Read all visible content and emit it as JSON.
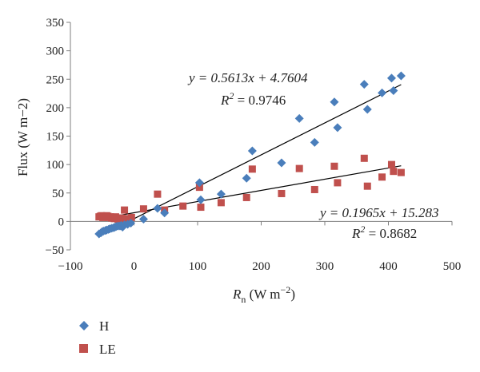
{
  "chart_data": {
    "type": "scatter",
    "xlabel": {
      "main": "R",
      "sub": "n",
      "unit": " (W m",
      "exp": "−2",
      "close": ")"
    },
    "ylabel": "Flux (W m−2)",
    "xlim": [
      -100,
      500
    ],
    "ylim": [
      -50,
      350
    ],
    "xticks": [
      -100,
      0,
      100,
      200,
      300,
      400,
      500
    ],
    "yticks": [
      -50,
      0,
      50,
      100,
      150,
      200,
      250,
      300,
      350
    ],
    "xtick_labels": [
      "−100",
      "0",
      "100",
      "200",
      "300",
      "400",
      "500"
    ],
    "ytick_labels": [
      "−50",
      "0",
      "50",
      "100",
      "150",
      "200",
      "250",
      "300",
      "350"
    ],
    "grid": false,
    "legend_position": "bottom-left",
    "series": [
      {
        "name": "H",
        "marker": "diamond",
        "color": "#4a7ebb",
        "points": [
          [
            -55,
            -22
          ],
          [
            -52,
            -20
          ],
          [
            -50,
            -18
          ],
          [
            -48,
            -17
          ],
          [
            -45,
            -16
          ],
          [
            -43,
            -15
          ],
          [
            -40,
            -14
          ],
          [
            -38,
            -13
          ],
          [
            -35,
            -12
          ],
          [
            -32,
            -11
          ],
          [
            -30,
            -10
          ],
          [
            -28,
            -9
          ],
          [
            -25,
            -8
          ],
          [
            -22,
            -8
          ],
          [
            -20,
            -7
          ],
          [
            -18,
            -10
          ],
          [
            -15,
            -6
          ],
          [
            -10,
            -5
          ],
          [
            -5,
            -3
          ],
          [
            15,
            4
          ],
          [
            37,
            23
          ],
          [
            48,
            15
          ],
          [
            103,
            68
          ],
          [
            105,
            38
          ],
          [
            137,
            48
          ],
          [
            177,
            76
          ],
          [
            186,
            124
          ],
          [
            232,
            103
          ],
          [
            260,
            181
          ],
          [
            284,
            139
          ],
          [
            315,
            210
          ],
          [
            320,
            165
          ],
          [
            362,
            241
          ],
          [
            367,
            197
          ],
          [
            390,
            226
          ],
          [
            405,
            252
          ],
          [
            408,
            230
          ],
          [
            420,
            256
          ]
        ]
      },
      {
        "name": "LE",
        "marker": "square",
        "color": "#c0504d",
        "points": [
          [
            -55,
            8
          ],
          [
            -53,
            9
          ],
          [
            -51,
            10
          ],
          [
            -49,
            7
          ],
          [
            -47,
            9
          ],
          [
            -45,
            8
          ],
          [
            -43,
            10
          ],
          [
            -41,
            9
          ],
          [
            -39,
            7
          ],
          [
            -37,
            8
          ],
          [
            -35,
            6
          ],
          [
            -33,
            7
          ],
          [
            -31,
            5
          ],
          [
            -29,
            8
          ],
          [
            -27,
            6
          ],
          [
            -25,
            4
          ],
          [
            -23,
            5
          ],
          [
            -21,
            3
          ],
          [
            -19,
            6
          ],
          [
            -17,
            2
          ],
          [
            -15,
            20
          ],
          [
            -13,
            4
          ],
          [
            -8,
            5
          ],
          [
            -4,
            7
          ],
          [
            15,
            22
          ],
          [
            37,
            48
          ],
          [
            48,
            20
          ],
          [
            77,
            27
          ],
          [
            103,
            60
          ],
          [
            105,
            25
          ],
          [
            137,
            33
          ],
          [
            177,
            42
          ],
          [
            186,
            92
          ],
          [
            232,
            49
          ],
          [
            260,
            93
          ],
          [
            284,
            56
          ],
          [
            315,
            97
          ],
          [
            320,
            68
          ],
          [
            362,
            111
          ],
          [
            367,
            62
          ],
          [
            390,
            78
          ],
          [
            405,
            100
          ],
          [
            408,
            88
          ],
          [
            420,
            86
          ]
        ]
      }
    ],
    "trendlines": [
      {
        "series": "H",
        "slope": 0.5613,
        "intercept": 4.7604,
        "x_range": [
          -55,
          420
        ]
      },
      {
        "series": "LE",
        "slope": 0.1965,
        "intercept": 15.283,
        "x_range": [
          -55,
          420
        ]
      }
    ],
    "annotations": {
      "h_eq": "y = 0.5613x + 4.7604",
      "h_r2_value": " = 0.9746",
      "le_eq": "y = 0.1965x + 15.283",
      "le_r2_value": " = 0.8682",
      "r2_symbol": "R",
      "r2_exp": "2"
    }
  }
}
